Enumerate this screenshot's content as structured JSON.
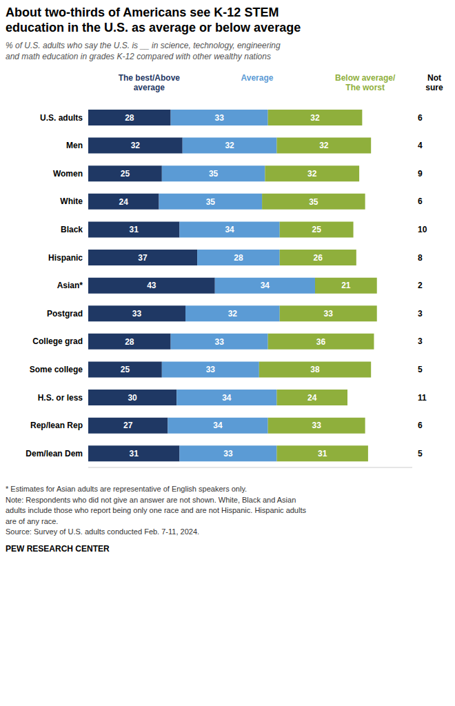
{
  "chart_data": {
    "type": "bar",
    "orientation": "horizontal",
    "stacked": true,
    "data_labels": true,
    "grid": false,
    "legend": "top",
    "tick_labels": "y",
    "title": "About two-thirds of Americans see K-12 STEM\neducation in the U.S. as average or below average",
    "subtitle": "% of U.S. adults who say the U.S. is __ in science, technology, engineering\nand math education in grades K-12 compared with other wealthy nations",
    "categories": [
      "U.S. adults",
      "Men",
      "Women",
      "White",
      "Black",
      "Hispanic",
      "Asian*",
      "Postgrad",
      "College grad",
      "Some college",
      "H.S. or less",
      "Rep/lean Rep",
      "Dem/lean Dem"
    ],
    "xlim": [
      0,
      110
    ],
    "series": [
      {
        "name": "The best/Above\naverage",
        "color": "#1F3864",
        "values": [
          28,
          32,
          25,
          24,
          31,
          37,
          43,
          33,
          28,
          25,
          30,
          27,
          31
        ]
      },
      {
        "name": "Average",
        "color": "#5B9BD5",
        "values": [
          33,
          32,
          35,
          35,
          34,
          28,
          34,
          32,
          33,
          33,
          34,
          34,
          33
        ]
      },
      {
        "name": "Below average/\nThe worst",
        "color": "#8FAF3C",
        "values": [
          32,
          32,
          32,
          35,
          25,
          26,
          21,
          33,
          36,
          38,
          24,
          33,
          31
        ]
      },
      {
        "name": "Not\nsure",
        "type": "text",
        "values": [
          6,
          4,
          9,
          6,
          10,
          8,
          2,
          3,
          3,
          5,
          11,
          6,
          5
        ]
      }
    ],
    "annotations": [
      "* Estimates for Asian adults are representative of English speakers only.",
      "Note: Respondents who did not give an answer are not shown. White, Black and Asian",
      "adults include those who report being only one race and are not Hispanic. Hispanic adults",
      "are of any race.",
      "Source: Survey of U.S. adults conducted Feb. 7-11, 2024."
    ],
    "source": "PEW RESEARCH CENTER"
  }
}
